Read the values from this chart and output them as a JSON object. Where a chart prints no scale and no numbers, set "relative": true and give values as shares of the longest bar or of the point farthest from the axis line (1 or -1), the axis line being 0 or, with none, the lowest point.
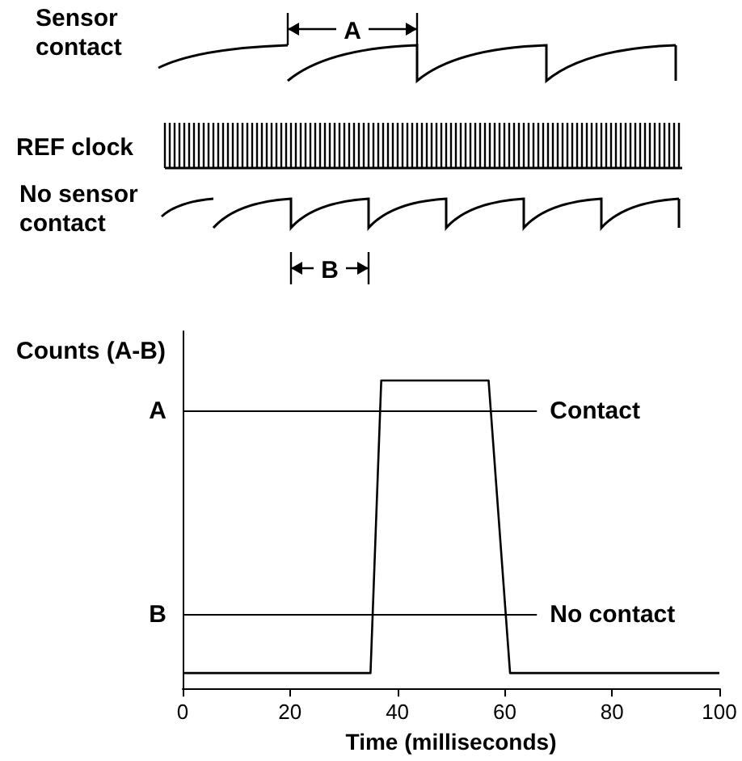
{
  "chart_data": [
    {
      "type": "other",
      "annotations": [
        "Sensor\ncontact",
        "REF clock",
        "No sensor\ncontact",
        "A",
        "B"
      ]
    },
    {
      "type": "line",
      "xlabel": "Time (milliseconds)",
      "ylabel": "Counts (A-B)",
      "relative": true,
      "x": [
        0,
        35,
        37,
        57,
        61,
        100
      ],
      "series": [
        {
          "color": "#000000",
          "values": [
            0.05,
            0.05,
            1,
            1,
            0.05,
            0.05
          ]
        }
      ],
      "xlim": [
        0,
        100
      ],
      "xticks": [
        0,
        20,
        40,
        60,
        80,
        100
      ],
      "ref_lines": [
        {
          "axis": "y",
          "value": 0.9,
          "label": "Contact",
          "color": "#000000"
        },
        {
          "axis": "y",
          "value": 0.24,
          "label": "No contact",
          "color": "#000000"
        }
      ],
      "annotations": [
        "A",
        "B"
      ],
      "grid": false,
      "marker": "none",
      "line_style": "solid"
    }
  ]
}
